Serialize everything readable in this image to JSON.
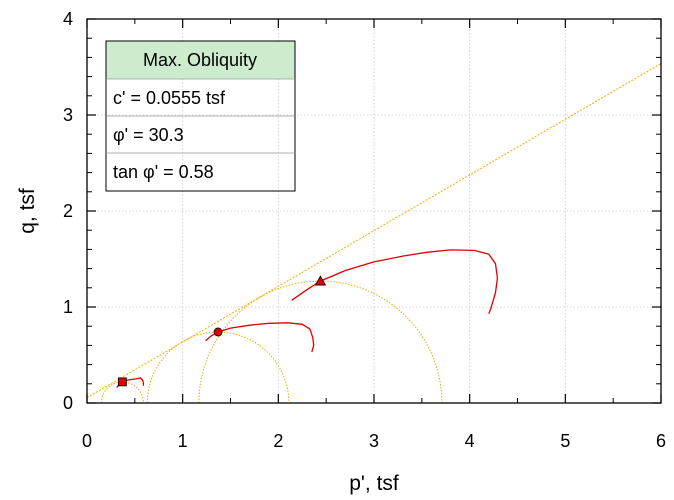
{
  "chart_data": {
    "type": "scatter",
    "xlabel": "p', tsf",
    "ylabel": "q, tsf",
    "xlim": [
      0,
      6
    ],
    "ylim": [
      0,
      4
    ],
    "x_ticks": [
      "0",
      "1",
      "2",
      "3",
      "4",
      "5",
      "6"
    ],
    "y_ticks": [
      "0",
      "1",
      "2",
      "3",
      "4"
    ],
    "grid": true,
    "legend": {
      "title": "Max. Obliquity",
      "rows": [
        "c' = 0.0555 tsf",
        "φ' = 30.3",
        "tan φ' = 0.58"
      ]
    },
    "failure_envelope": {
      "c": 0.0555,
      "slope": 0.58,
      "color": "#f2a900"
    },
    "mohr_circles": [
      {
        "center": 0.37,
        "radius": 0.22
      },
      {
        "center": 1.37,
        "radius": 0.74
      },
      {
        "center": 2.44,
        "radius": 1.27
      }
    ],
    "series": [
      {
        "marker": "square",
        "color": "#e00000",
        "points": [
          [
            0.31,
            0.16
          ],
          [
            0.33,
            0.19
          ],
          [
            0.37,
            0.22
          ],
          [
            0.43,
            0.24
          ],
          [
            0.5,
            0.25
          ],
          [
            0.56,
            0.26
          ],
          [
            0.58,
            0.24
          ],
          [
            0.59,
            0.21
          ],
          [
            0.59,
            0.18
          ]
        ],
        "marker_point": [
          0.37,
          0.22
        ]
      },
      {
        "marker": "circle",
        "color": "#e00000",
        "points": [
          [
            1.24,
            0.65
          ],
          [
            1.3,
            0.7
          ],
          [
            1.37,
            0.74
          ],
          [
            1.5,
            0.78
          ],
          [
            1.7,
            0.81
          ],
          [
            1.9,
            0.83
          ],
          [
            2.1,
            0.835
          ],
          [
            2.25,
            0.82
          ],
          [
            2.33,
            0.77
          ],
          [
            2.36,
            0.68
          ],
          [
            2.37,
            0.6
          ],
          [
            2.35,
            0.53
          ]
        ],
        "marker_point": [
          1.37,
          0.74
        ]
      },
      {
        "marker": "triangle",
        "color": "#e00000",
        "points": [
          [
            2.14,
            1.07
          ],
          [
            2.3,
            1.18
          ],
          [
            2.44,
            1.27
          ],
          [
            2.7,
            1.38
          ],
          [
            3.0,
            1.47
          ],
          [
            3.3,
            1.53
          ],
          [
            3.55,
            1.57
          ],
          [
            3.8,
            1.595
          ],
          [
            4.05,
            1.59
          ],
          [
            4.2,
            1.55
          ],
          [
            4.27,
            1.45
          ],
          [
            4.29,
            1.3
          ],
          [
            4.27,
            1.15
          ],
          [
            4.22,
            0.98
          ],
          [
            4.2,
            0.93
          ]
        ],
        "marker_point": [
          2.44,
          1.27
        ]
      }
    ]
  }
}
